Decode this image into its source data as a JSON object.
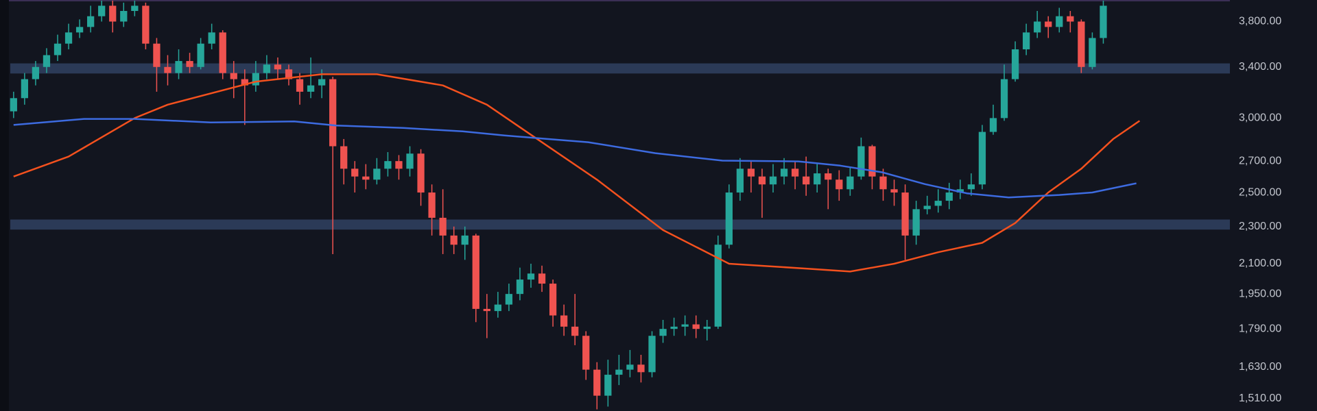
{
  "chart_data": {
    "type": "candlestick",
    "log_scale": true,
    "ylim": [
      1464,
      4006
    ],
    "yticks": [
      {
        "value": 3800,
        "label": "3,800.00"
      },
      {
        "value": 3400,
        "label": "3,400.00"
      },
      {
        "value": 3000,
        "label": "3,000.00"
      },
      {
        "value": 2700,
        "label": "2,700.00"
      },
      {
        "value": 2500,
        "label": "2,500.00"
      },
      {
        "value": 2300,
        "label": "2,300.00"
      },
      {
        "value": 2100,
        "label": "2,100.00"
      },
      {
        "value": 1950,
        "label": "1,950.00"
      },
      {
        "value": 1790,
        "label": "1,790.00"
      },
      {
        "value": 1630,
        "label": "1,630.00"
      },
      {
        "value": 1510,
        "label": "1,510.00"
      }
    ],
    "xlim": [
      -0.3,
      110.5
    ],
    "up_color": "#26a69a",
    "down_color": "#ef5350",
    "zone_color": "#2b3a57",
    "zones": [
      {
        "from": 3346,
        "to": 3430
      },
      {
        "from": 2283,
        "to": 2340
      }
    ],
    "open": [
      3050,
      3150,
      3300,
      3400,
      3500,
      3600,
      3700,
      3750,
      3850,
      3950,
      3800,
      3900,
      3950,
      3600,
      3400,
      3350,
      3450,
      3400,
      3600,
      3700,
      3350,
      3300,
      3250,
      3350,
      3420,
      3380,
      3300,
      3200,
      3250,
      3300,
      2800,
      2650,
      2600,
      2580,
      2650,
      2700,
      2650,
      2750,
      2500,
      2350,
      2250,
      2200,
      2250,
      1880,
      1870,
      1900,
      1950,
      2020,
      2050,
      2000,
      1850,
      1800,
      1760,
      1620,
      1520,
      1600,
      1620,
      1640,
      1610,
      1760,
      1790,
      1800,
      1810,
      1790,
      1800,
      2200,
      2500,
      2650,
      2600,
      2550,
      2600,
      2650,
      2600,
      2550,
      2620,
      2580,
      2520,
      2600,
      2800,
      2600,
      2520,
      2500,
      2250,
      2400,
      2420,
      2450,
      2500,
      2520,
      2550,
      2900,
      3000,
      3300,
      3550,
      3700,
      3800,
      3750,
      3850,
      3800,
      3400,
      3650
    ],
    "high": [
      3200,
      3350,
      3450,
      3560,
      3680,
      3780,
      3820,
      3950,
      4000,
      4000,
      3980,
      4000,
      3980,
      3650,
      3500,
      3550,
      3520,
      3650,
      3780,
      3720,
      3450,
      3380,
      3450,
      3500,
      3480,
      3420,
      3350,
      3480,
      3380,
      3320,
      2850,
      2700,
      2680,
      2720,
      2760,
      2740,
      2800,
      2780,
      2550,
      2520,
      2300,
      2300,
      2260,
      1950,
      1960,
      2000,
      2080,
      2100,
      2090,
      2020,
      1900,
      1950,
      1780,
      1650,
      1660,
      1680,
      1700,
      1680,
      1780,
      1830,
      1840,
      1850,
      1850,
      1830,
      2250,
      2550,
      2720,
      2700,
      2650,
      2680,
      2720,
      2700,
      2730,
      2680,
      2650,
      2640,
      2660,
      2860,
      2810,
      2650,
      2580,
      2550,
      2450,
      2480,
      2520,
      2560,
      2580,
      2620,
      2950,
      3100,
      3420,
      3620,
      3780,
      3900,
      3850,
      3930,
      3900,
      3820,
      3700,
      4000
    ],
    "low": [
      3000,
      3100,
      3250,
      3350,
      3450,
      3550,
      3650,
      3700,
      3800,
      3700,
      3750,
      3850,
      3550,
      3200,
      3250,
      3300,
      3350,
      3380,
      3550,
      3300,
      3150,
      2950,
      3200,
      3300,
      3300,
      3250,
      3100,
      3150,
      3150,
      2150,
      2550,
      2500,
      2520,
      2550,
      2600,
      2580,
      2600,
      2420,
      2250,
      2150,
      2150,
      2120,
      1820,
      1750,
      1840,
      1870,
      1920,
      1980,
      1960,
      1800,
      1760,
      1720,
      1580,
      1470,
      1480,
      1560,
      1590,
      1570,
      1590,
      1730,
      1760,
      1760,
      1750,
      1740,
      1790,
      2180,
      2450,
      2500,
      2350,
      2500,
      2550,
      2520,
      2480,
      2500,
      2400,
      2450,
      2480,
      2580,
      2520,
      2450,
      2420,
      2120,
      2200,
      2370,
      2380,
      2400,
      2460,
      2480,
      2520,
      2880,
      2980,
      3280,
      3500,
      3650,
      3650,
      3700,
      3700,
      3350,
      3380,
      3600
    ],
    "close": [
      3150,
      3300,
      3400,
      3500,
      3600,
      3700,
      3750,
      3850,
      3950,
      3800,
      3900,
      3950,
      3600,
      3400,
      3350,
      3450,
      3400,
      3600,
      3700,
      3350,
      3300,
      3250,
      3350,
      3420,
      3380,
      3300,
      3200,
      3250,
      3300,
      2800,
      2650,
      2600,
      2580,
      2650,
      2700,
      2650,
      2750,
      2500,
      2350,
      2250,
      2200,
      2250,
      1880,
      1870,
      1900,
      1950,
      2020,
      2050,
      2000,
      1850,
      1800,
      1760,
      1620,
      1520,
      1600,
      1620,
      1640,
      1610,
      1760,
      1790,
      1800,
      1810,
      1790,
      1800,
      2200,
      2500,
      2650,
      2600,
      2550,
      2600,
      2650,
      2600,
      2550,
      2620,
      2580,
      2520,
      2600,
      2800,
      2600,
      2520,
      2500,
      2250,
      2400,
      2420,
      2450,
      2500,
      2520,
      2550,
      2900,
      3000,
      3300,
      3550,
      3700,
      3800,
      3750,
      3850,
      3800,
      3400,
      3650,
      3950
    ],
    "series": [
      {
        "color": "#f4511e",
        "x": [
          0,
          5,
          11,
          14,
          22,
          28,
          33,
          39,
          43,
          47,
          53,
          59,
          65,
          72,
          76,
          80,
          84,
          88,
          91,
          94,
          97,
          99.9,
          102.3
        ],
        "values": [
          2600,
          2730,
          3000,
          3100,
          3280,
          3340,
          3340,
          3250,
          3100,
          2880,
          2580,
          2280,
          2100,
          2075,
          2060,
          2100,
          2160,
          2210,
          2320,
          2500,
          2650,
          2850,
          2980
        ]
      },
      {
        "color": "#3d6be0",
        "x": [
          0,
          6.4,
          11,
          17.9,
          25.5,
          29.3,
          35.4,
          40.8,
          44.6,
          48.4,
          52.2,
          58.3,
          64.4,
          71.3,
          75.1,
          78.9,
          82.8,
          86.6,
          90.4,
          95,
          98,
          102
        ],
        "values": [
          2950,
          2994,
          2994,
          2968,
          2976,
          2946,
          2928,
          2904,
          2875,
          2851,
          2828,
          2753,
          2703,
          2698,
          2670,
          2627,
          2552,
          2495,
          2470,
          2485,
          2500,
          2557
        ]
      }
    ]
  }
}
